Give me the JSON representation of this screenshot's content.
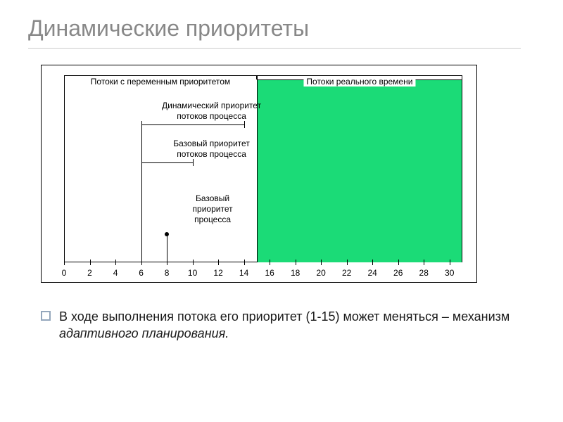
{
  "slide": {
    "title": "Динамические приоритеты",
    "title_color": "#888888",
    "title_fontsize": 32,
    "rule_color": "#cccccc"
  },
  "diagram": {
    "type": "custom-axis-diagram",
    "background_color": "#ffffff",
    "border_color": "#000000",
    "axis_color": "#000000",
    "x_range": [
      0,
      31
    ],
    "ticks": [
      0,
      2,
      4,
      6,
      8,
      10,
      12,
      14,
      16,
      18,
      20,
      22,
      24,
      26,
      28,
      30
    ],
    "tick_fontsize": 12,
    "green_region": {
      "from": 15,
      "to": 31,
      "fill": "#1bdb77"
    },
    "top_ranges": [
      {
        "from": 0,
        "to": 15,
        "label": "Потоки с переменным приоритетом",
        "y_offset": 0
      },
      {
        "from": 15,
        "to": 31,
        "label": "Потоки реального времени",
        "y_offset": 0
      }
    ],
    "annotations": [
      {
        "id": "dynamic",
        "label_lines": [
          "Динамический приоритет",
          "потоков процесса"
        ],
        "line_from_x": 6,
        "line_to_x": 14,
        "y_level": 64
      },
      {
        "id": "base_threads",
        "label_lines": [
          "Базовый приоритет",
          "потоков процесса"
        ],
        "line_from_x": 6,
        "line_to_x": 10,
        "y_level": 118
      },
      {
        "id": "base_process",
        "label_lines": [
          "Базовый",
          "приоритет",
          "процесса"
        ],
        "dot_x": 8,
        "y_level": 170
      }
    ]
  },
  "bullet": {
    "text_parts": {
      "pre": "В ходе выполнения потока его приоритет (1-15) может меняться – механизм ",
      "italic": "адаптивного планирования.",
      "post": ""
    },
    "fontsize": 18,
    "icon_border_color": "#94a7bc"
  }
}
